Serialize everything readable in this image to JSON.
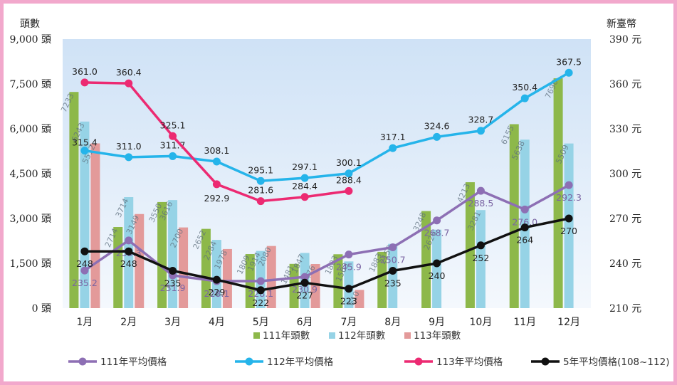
{
  "chart_data": {
    "type": "bar",
    "categories": [
      "1月",
      "2月",
      "3月",
      "4月",
      "5月",
      "6月",
      "7月",
      "8月",
      "9月",
      "10月",
      "11月",
      "12月"
    ],
    "y_left_label": "頭數",
    "y_right_label": "新臺幣",
    "y_left_range": [
      0,
      9000
    ],
    "y_left_ticks": [
      "9,000 頭",
      "7,500 頭",
      "6,000 頭",
      "4,500 頭",
      "3,000 頭",
      "1,500 頭",
      "0 頭"
    ],
    "y_right_range": [
      210,
      390
    ],
    "y_right_ticks": [
      "390 元",
      "360 元",
      "330 元",
      "300 元",
      "270 元",
      "240 元",
      "210 元"
    ],
    "grid": false,
    "bar_series": [
      {
        "name": "111年頭數",
        "color": "#8db84a",
        "value_labels_visible": true,
        "values": [
          7233,
          2714,
          3550,
          2652,
          1809,
          1481,
          1803,
          1883,
          3248,
          4213,
          6155,
          7690
        ]
      },
      {
        "name": "112年頭數",
        "color": "#96d3e6",
        "value_labels_visible": true,
        "values": [
          6243,
          3714,
          3616,
          2284,
          1914,
          1847,
          1563,
          2150,
          2626,
          3281,
          5638,
          5509
        ]
      },
      {
        "name": "113年頭數",
        "color": "#e39a9a",
        "value_labels_visible": true,
        "values": [
          5512,
          3149,
          2700,
          1978,
          2080,
          1476,
          610,
          null,
          null,
          null,
          null,
          null
        ]
      }
    ],
    "line_series": [
      {
        "name": "111年平均價格",
        "color": "#8d6fb4",
        "label_color": "#7a64a3",
        "values": [
          235.2,
          255.3,
          231.9,
          228.1,
          228.1,
          230.9,
          245.9,
          250.7,
          268.7,
          288.5,
          276.0,
          292.3
        ],
        "labels": [
          "235.2",
          "255.3",
          "231.9",
          "228.1",
          "228.1",
          "230.9",
          "245.9",
          "250.7",
          "268.7",
          "288.5",
          "276.0",
          "292.3"
        ]
      },
      {
        "name": "112年平均價格",
        "color": "#25b4ea",
        "label_color": "#222222",
        "values": [
          315.4,
          311.0,
          311.7,
          308.1,
          295.1,
          297.1,
          300.1,
          317.1,
          324.6,
          328.7,
          350.4,
          367.5
        ],
        "labels": [
          "315.4",
          "311.0",
          "311.7",
          "308.1",
          "295.1",
          "297.1",
          "300.1",
          "317.1",
          "324.6",
          "328.7",
          "350.4",
          "367.5"
        ]
      },
      {
        "name": "113年平均價格",
        "color": "#ec2a72",
        "label_color": "#222222",
        "values": [
          361.0,
          360.4,
          325.1,
          292.9,
          281.6,
          284.4,
          288.4,
          null,
          null,
          null,
          null,
          null
        ],
        "labels": [
          "361.0",
          "360.4",
          "325.1",
          "292.9",
          "281.6",
          "284.4",
          "288.4",
          "",
          "",
          "",
          "",
          ""
        ]
      },
      {
        "name": "5年平均價格(108~112)",
        "color": "#111111",
        "label_color": "#222222",
        "values": [
          248,
          248,
          235,
          229,
          222,
          227,
          223,
          235,
          240,
          252,
          264,
          270
        ],
        "labels": [
          "248",
          "248",
          "235",
          "229",
          "222",
          "227",
          "223",
          "235",
          "240",
          "252",
          "264",
          "270"
        ]
      }
    ],
    "legend_placement": "bottom"
  }
}
